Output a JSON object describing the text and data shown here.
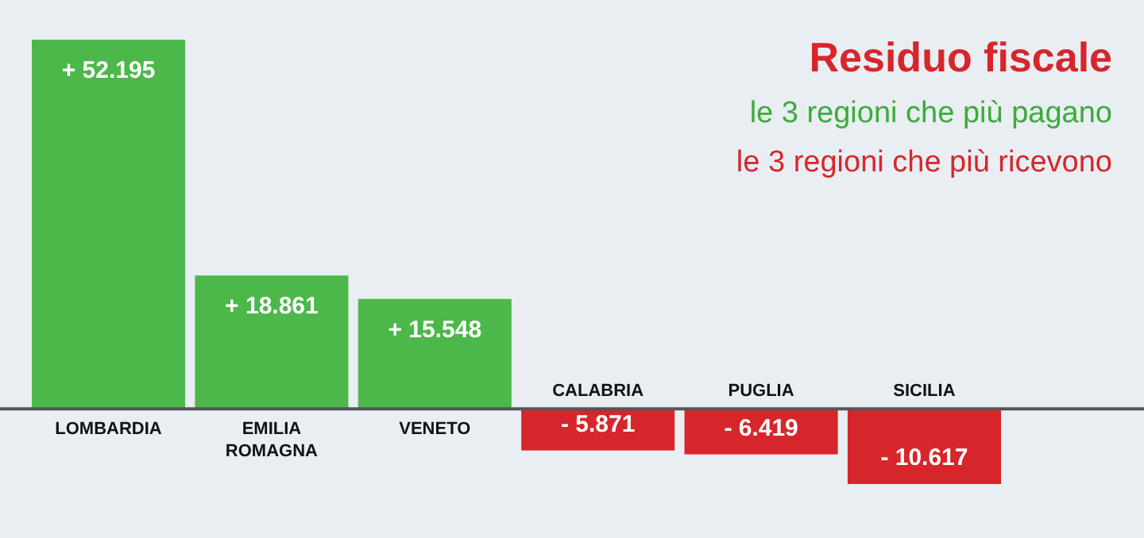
{
  "chart_data": {
    "type": "bar",
    "title": "Residuo fiscale",
    "subtitle": "le 3 regioni che più pagano",
    "annotations": [
      "le 3 regioni che più ricevono"
    ],
    "categories": [
      "LOMBARDIA",
      "EMILIA ROMAGNA",
      "VENETO",
      "CALABRIA",
      "PUGLIA",
      "SICILIA"
    ],
    "values": [
      52195,
      18861,
      15548,
      -5871,
      -6419,
      -10617
    ],
    "value_labels": [
      "+ 52.195",
      "+ 18.861",
      "+ 15.548",
      "- 5.871",
      "- 6.419",
      "- 10.617"
    ],
    "colors": [
      "#4cb84a",
      "#4cb84a",
      "#4cb84a",
      "#d7262b",
      "#d7262b",
      "#d7262b"
    ]
  }
}
